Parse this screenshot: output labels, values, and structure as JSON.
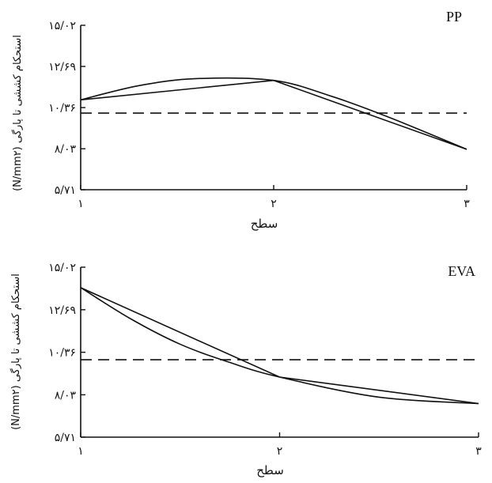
{
  "chart_data": [
    {
      "type": "line",
      "panel_label": "PP",
      "xlabel": "سطح",
      "ylabel": "استحکام کششی تا پارگی (N/mm۲)",
      "x_tick_labels": [
        "۱",
        "۲",
        "۳"
      ],
      "y_tick_labels": [
        "۵/۷۱",
        "۸/۰۳",
        "۱۰/۳۶",
        "۱۲/۶۹",
        "۱۵/۰۲"
      ],
      "x_ticks": [
        1,
        2,
        3
      ],
      "y_ticks": [
        5.71,
        8.03,
        10.36,
        12.69,
        15.02
      ],
      "xlim": [
        1,
        3
      ],
      "ylim": [
        5.71,
        15.02
      ],
      "series": [
        {
          "style": "straight",
          "x": [
            1,
            2,
            3
          ],
          "y": [
            10.8,
            11.9,
            8.0
          ]
        },
        {
          "style": "curve",
          "x": [
            1,
            1.3,
            1.6,
            2,
            2.3,
            2.6,
            3
          ],
          "y": [
            10.8,
            11.6,
            12.0,
            11.9,
            11.0,
            9.8,
            8.0
          ]
        }
      ],
      "reference_line": {
        "style": "dashed",
        "y": 10.05
      }
    },
    {
      "type": "line",
      "panel_label": "EVA",
      "xlabel": "سطح",
      "ylabel": "استحکام کششی تا پارگی (N/mm۲)",
      "x_tick_labels": [
        "۱",
        "۲",
        "۳"
      ],
      "y_tick_labels": [
        "۵/۷۱",
        "۸/۰۳",
        "۱۰/۳۶",
        "۱۲/۶۹",
        "۱۵/۰۲"
      ],
      "x_ticks": [
        1,
        2,
        3
      ],
      "y_ticks": [
        5.71,
        8.03,
        10.36,
        12.69,
        15.02
      ],
      "xlim": [
        1,
        3
      ],
      "ylim": [
        5.71,
        15.02
      ],
      "series": [
        {
          "style": "straight",
          "x": [
            1,
            2,
            3
          ],
          "y": [
            13.9,
            9.0,
            7.55
          ]
        },
        {
          "style": "curve",
          "x": [
            1,
            1.25,
            1.5,
            1.75,
            2,
            2.5,
            3
          ],
          "y": [
            13.9,
            12.2,
            10.8,
            9.8,
            9.0,
            7.9,
            7.55
          ]
        }
      ],
      "reference_line": {
        "style": "dashed",
        "y": 9.95
      }
    }
  ]
}
